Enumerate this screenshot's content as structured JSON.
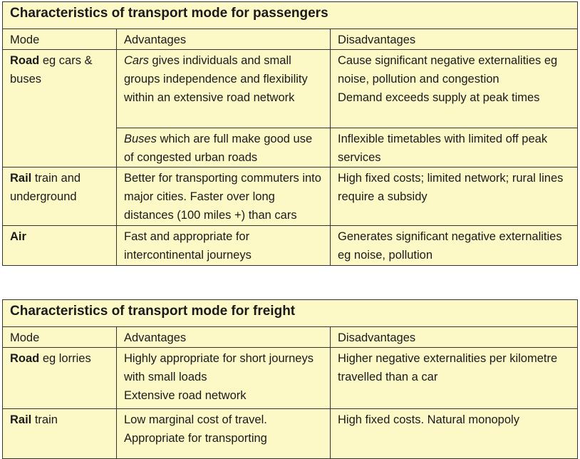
{
  "passengers": {
    "title": "Characteristics of transport mode for passengers",
    "headers": {
      "mode": "Mode",
      "advantages": "Advantages",
      "disadvantages": "Disadvantages"
    },
    "road": {
      "mode_bold": "Road",
      "mode_rest": " eg cars & buses",
      "cars_adv_italic": "Cars",
      "cars_adv_rest": " gives individuals and small groups independence and flexibility within an extensive road network",
      "cars_dis_1": "Cause significant negative  externalities eg noise, pollution and congestion",
      "cars_dis_2": "Demand exceeds supply at peak times",
      "buses_adv_italic": "Buses",
      "buses_adv_rest": " which are full make good use of congested urban roads",
      "buses_dis": "Inflexible timetables with limited off peak services"
    },
    "rail": {
      "mode_bold": "Rail",
      "mode_rest": " train and underground",
      "adv": "Better for transporting commuters into major cities. Faster over long distances (100 miles +) than cars",
      "dis": "High fixed costs; limited network; rural lines require a subsidy"
    },
    "air": {
      "mode_bold": "Air",
      "mode_rest": "",
      "adv": "Fast and appropriate for intercontinental journeys",
      "dis": "Generates significant negative externalities eg noise, pollution"
    }
  },
  "freight": {
    "title": "Characteristics of transport mode for freight",
    "headers": {
      "mode": "Mode",
      "advantages": "Advantages",
      "disadvantages": "Disadvantages"
    },
    "road": {
      "mode_bold": "Road",
      "mode_rest": " eg lorries",
      "adv_1": "Highly appropriate for short journeys with small loads",
      "adv_2": "Extensive road network",
      "dis": "Higher negative externalities per kilometre travelled than a car"
    },
    "rail": {
      "mode_bold": "Rail",
      "mode_rest": " train",
      "adv": "Low marginal cost of travel. Appropriate for transporting",
      "dis": "High fixed costs. Natural monopoly"
    }
  },
  "colors": {
    "background": "#fdf9c6",
    "border": "#333333"
  }
}
